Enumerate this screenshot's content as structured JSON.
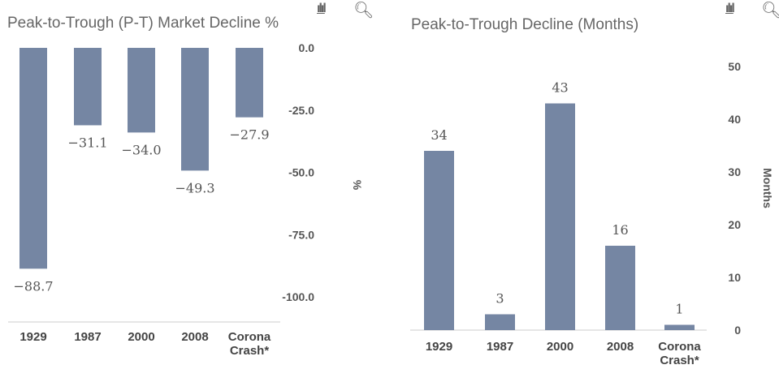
{
  "chart_data": [
    {
      "type": "bar",
      "title": "Peak-to-Trough (P-T) Market Decline %",
      "ylabel": "%",
      "categories": [
        [
          "1929"
        ],
        [
          "1987"
        ],
        [
          "2000"
        ],
        [
          "2008"
        ],
        [
          "Corona",
          "Crash*"
        ]
      ],
      "values": [
        -88.7,
        -31.1,
        -34.0,
        -49.3,
        -27.9
      ],
      "data_labels": [
        "−88.7",
        "−31.1",
        "−34.0",
        "−49.3",
        "−27.9"
      ],
      "yticks": [
        "0.0",
        "-25.0",
        "-50.0",
        "-75.0",
        "-100.0"
      ],
      "ylim": [
        -100,
        0
      ],
      "axis_side": "right",
      "grid": false,
      "bar_color": "#7586a3"
    },
    {
      "type": "bar",
      "title": "Peak-to-Trough Decline (Months)",
      "ylabel": "Months",
      "categories": [
        [
          "1929"
        ],
        [
          "1987"
        ],
        [
          "2000"
        ],
        [
          "2008"
        ],
        [
          "Corona",
          "Crash*"
        ]
      ],
      "values": [
        34,
        3,
        43,
        16,
        1
      ],
      "data_labels": [
        "34",
        "3",
        "43",
        "16",
        "1"
      ],
      "yticks": [
        "0",
        "10",
        "20",
        "30",
        "40",
        "50"
      ],
      "ylim": [
        0,
        50
      ],
      "axis_side": "right",
      "grid": false,
      "bar_color": "#7586a3"
    }
  ],
  "icons": [
    "bar-chart-icon",
    "search-icon"
  ]
}
